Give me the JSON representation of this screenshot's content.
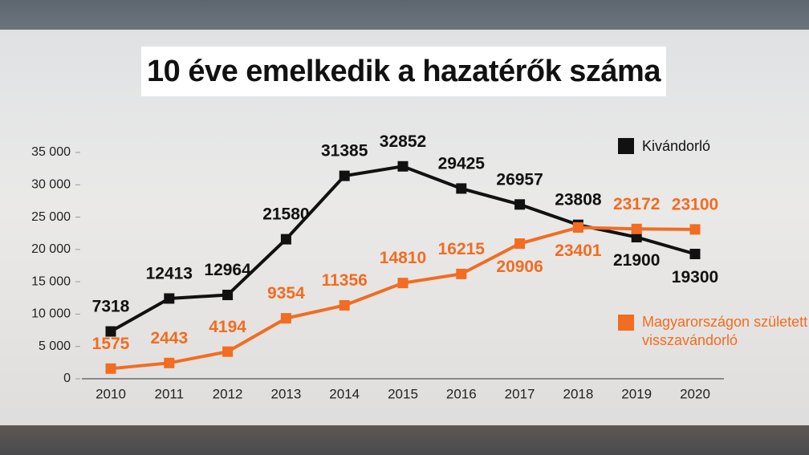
{
  "chart_data": {
    "type": "line",
    "title": "10 éve emelkedik a hazatérők száma",
    "categories": [
      "2010",
      "2011",
      "2012",
      "2013",
      "2014",
      "2015",
      "2016",
      "2017",
      "2018",
      "2019",
      "2020"
    ],
    "series": [
      {
        "name": "Kivándorló",
        "color": "#111111",
        "values": [
          7318,
          12413,
          12964,
          21580,
          31385,
          32852,
          29425,
          26957,
          23808,
          21900,
          19300
        ]
      },
      {
        "name": "Magyarországon született visszavándorló",
        "color": "#f26c21",
        "values": [
          1575,
          2443,
          4194,
          9354,
          11356,
          14810,
          16215,
          20906,
          23401,
          23172,
          23100
        ]
      }
    ],
    "ylim": [
      0,
      35000
    ],
    "yticks": [
      0,
      {
        "value": 5000,
        "label": "5 000"
      },
      {
        "value": 10000,
        "label": "10 000"
      },
      {
        "value": 15000,
        "label": "15 000"
      },
      {
        "value": 20000,
        "label": "20 000"
      },
      {
        "value": 25000,
        "label": "25 000"
      },
      {
        "value": 30000,
        "label": "30 000"
      },
      {
        "value": 35000,
        "label": "35 000"
      }
    ],
    "grid": false
  }
}
